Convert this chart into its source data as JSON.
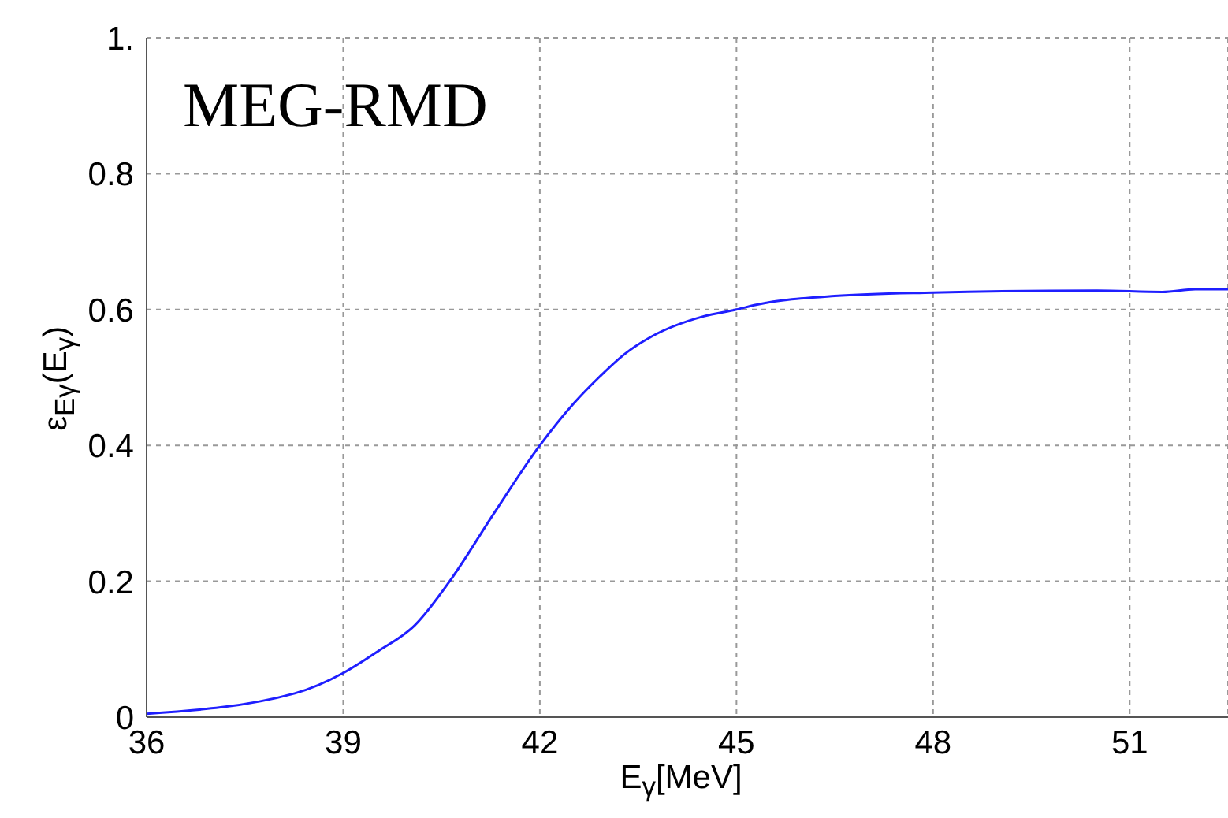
{
  "chart_data": {
    "type": "line",
    "xlabel": "E$_{γ}$[MeV]",
    "ylabel": "ε$_{Eγ}$(E$_{γ}$)",
    "annotations": [
      "MEG-RMD"
    ],
    "series": [
      {
        "color": "#1f1fff",
        "x": [
          36,
          38.26,
          39.0,
          39.53,
          40.09,
          40.66,
          41.3,
          42.0,
          42.5,
          42.9,
          43.3,
          43.7,
          44.5,
          45.0,
          45.3,
          46.5,
          48.0,
          50.5,
          51.5,
          52.0,
          52.5
        ],
        "values": [
          0.005,
          0.035,
          0.065,
          0.097,
          0.135,
          0.205,
          0.3,
          0.4,
          0.46,
          0.5,
          0.535,
          0.56,
          0.59,
          0.6,
          0.607,
          0.62,
          0.625,
          0.628,
          0.626,
          0.63,
          0.63
        ]
      }
    ],
    "xlim": [
      36,
      52.5
    ],
    "xticks": [
      36,
      39,
      42,
      45,
      48,
      51
    ],
    "ylim": [
      0,
      1
    ],
    "yticks": [
      0,
      0.2,
      0.4,
      0.6,
      0.8,
      {
        "value": 1,
        "label": "1."
      }
    ],
    "grid": true,
    "marker": "none",
    "line_style": "solid"
  }
}
